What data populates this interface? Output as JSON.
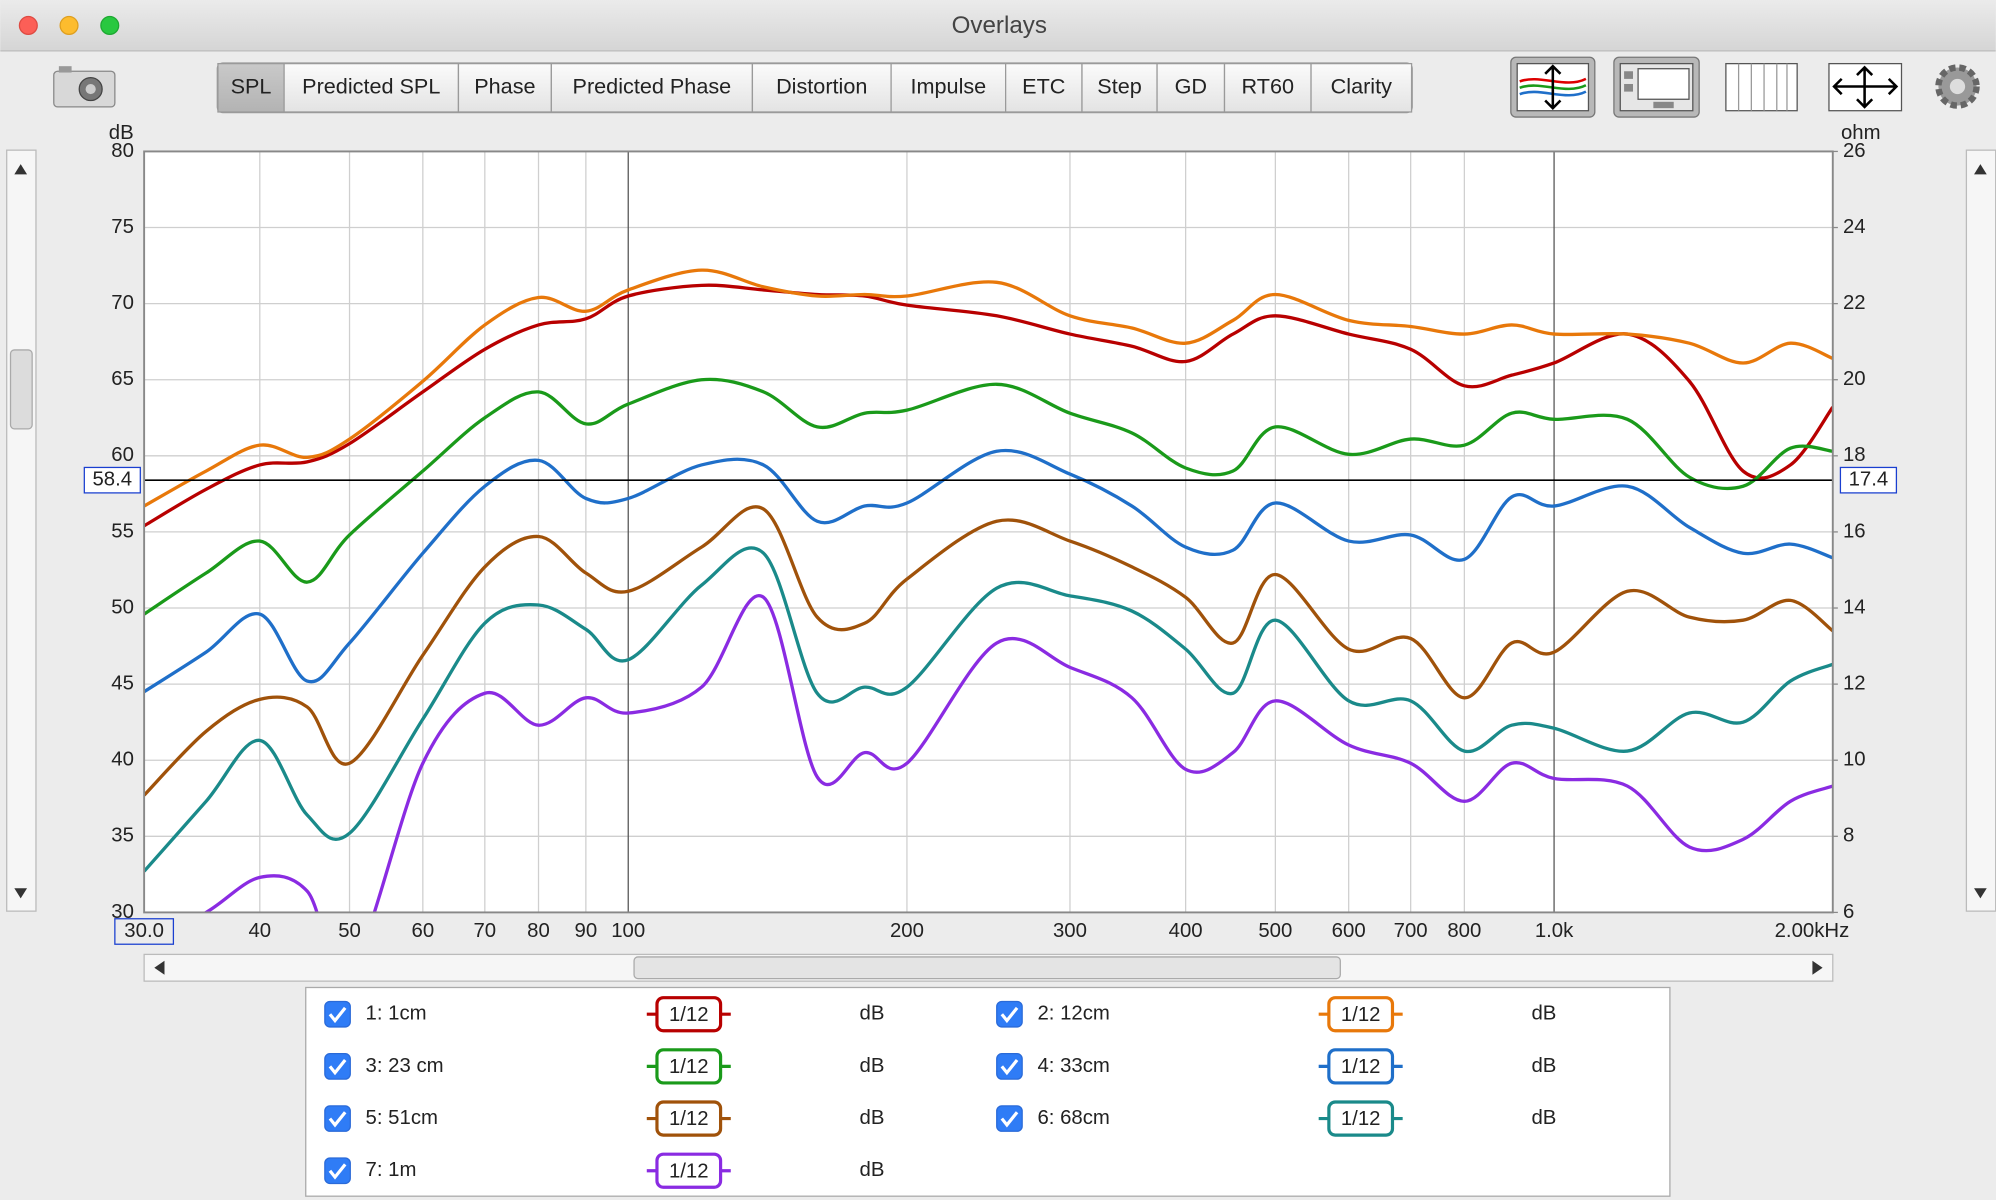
{
  "window": {
    "title": "Overlays"
  },
  "tabs": [
    {
      "label": "SPL",
      "selected": true
    },
    {
      "label": "Predicted SPL",
      "selected": false
    },
    {
      "label": "Phase",
      "selected": false
    },
    {
      "label": "Predicted Phase",
      "selected": false
    },
    {
      "label": "Distortion",
      "selected": false
    },
    {
      "label": "Impulse",
      "selected": false
    },
    {
      "label": "ETC",
      "selected": false
    },
    {
      "label": "Step",
      "selected": false
    },
    {
      "label": "GD",
      "selected": false
    },
    {
      "label": "RT60",
      "selected": false
    },
    {
      "label": "Clarity",
      "selected": false
    }
  ],
  "chart_data": {
    "type": "line",
    "xscale": "log",
    "grid": true,
    "ylabel": "dB",
    "y2label": "ohm",
    "x": [
      30,
      35,
      40,
      45,
      50,
      60,
      70,
      80,
      90,
      100,
      120,
      140,
      160,
      180,
      200,
      250,
      300,
      350,
      400,
      450,
      500,
      600,
      700,
      800,
      900,
      1000,
      1200,
      1400,
      1600,
      1800,
      2000
    ],
    "xlim": [
      30,
      2000
    ],
    "xticks": [
      {
        "value": 30,
        "label": "30.0"
      },
      40,
      50,
      60,
      70,
      80,
      90,
      100,
      200,
      300,
      400,
      500,
      600,
      700,
      800,
      {
        "value": 1000,
        "label": "1.0k"
      },
      {
        "value": 2000,
        "label": "2.00kHz"
      }
    ],
    "ylim": [
      30,
      80
    ],
    "yticks": [
      30,
      35,
      40,
      45,
      50,
      55,
      60,
      65,
      70,
      75,
      80
    ],
    "y2lim": [
      6,
      26
    ],
    "y2ticks": [
      6,
      8,
      10,
      12,
      14,
      16,
      18,
      20,
      22,
      24,
      26
    ],
    "cursor": {
      "value": 58.4,
      "y2_value": 17.4
    },
    "series": [
      {
        "name": "1: 1cm",
        "color": "#b80000",
        "smoothing": "1/12",
        "unit": "dB",
        "checked": true,
        "values": [
          55.4,
          57.8,
          59.4,
          59.6,
          60.8,
          64.2,
          67,
          68.6,
          69,
          70.5,
          71.2,
          70.9,
          70.6,
          70.5,
          69.9,
          69.2,
          68,
          67.2,
          66.2,
          68,
          69.2,
          68,
          67,
          64.6,
          65.3,
          66.1,
          68,
          64.9,
          59,
          59.4,
          63.2
        ]
      },
      {
        "name": "2: 12cm",
        "color": "#e8780a",
        "smoothing": "1/12",
        "unit": "dB",
        "checked": true,
        "values": [
          56.7,
          59,
          60.7,
          59.9,
          61.1,
          64.9,
          68.6,
          70.4,
          69.5,
          70.9,
          72.2,
          71.1,
          70.5,
          70.6,
          70.5,
          71.4,
          69.2,
          68.4,
          67.4,
          68.9,
          70.6,
          68.9,
          68.5,
          68,
          68.6,
          68,
          68,
          67.4,
          66.1,
          67.4,
          66.4
        ]
      },
      {
        "name": "3: 23 cm",
        "color": "#1a9a1a",
        "smoothing": "1/12",
        "unit": "dB",
        "checked": true,
        "values": [
          49.6,
          52.3,
          54.4,
          51.7,
          54.8,
          59,
          62.5,
          64.2,
          62.1,
          63.4,
          65,
          64.2,
          61.9,
          62.8,
          63,
          64.7,
          62.8,
          61.5,
          59.2,
          59,
          61.9,
          60.1,
          61.1,
          60.7,
          62.8,
          62.4,
          62.4,
          58.6,
          58,
          60.5,
          60.3
        ]
      },
      {
        "name": "4: 33cm",
        "color": "#1f6fc9",
        "smoothing": "1/12",
        "unit": "dB",
        "checked": true,
        "values": [
          44.5,
          47.1,
          49.6,
          45.2,
          47.7,
          53.6,
          58,
          59.7,
          57.2,
          57.2,
          59.4,
          59.4,
          55.7,
          56.7,
          56.9,
          60.3,
          58.8,
          56.7,
          54,
          53.8,
          56.9,
          54.4,
          54.8,
          53.2,
          57.3,
          56.7,
          58,
          55.3,
          53.6,
          54.2,
          53.3
        ]
      },
      {
        "name": "5: 51cm",
        "color": "#a0520a",
        "smoothing": "1/12",
        "unit": "dB",
        "checked": true,
        "values": [
          37.7,
          41.9,
          44,
          43.5,
          39.8,
          46.9,
          52.7,
          54.7,
          52.3,
          51.1,
          54,
          56.5,
          49.4,
          49,
          51.9,
          55.7,
          54.4,
          52.7,
          50.7,
          47.7,
          52.2,
          47.3,
          48,
          44.1,
          47.7,
          47.1,
          51.1,
          49.4,
          49.2,
          50.5,
          48.5
        ]
      },
      {
        "name": "6: 68cm",
        "color": "#1a8a8a",
        "smoothing": "1/12",
        "unit": "dB",
        "checked": true,
        "values": [
          32.7,
          37.3,
          41.3,
          36.4,
          35.2,
          42.7,
          49,
          50.2,
          48.6,
          46.6,
          51.5,
          53.6,
          44.4,
          44.8,
          44.8,
          51.3,
          50.8,
          49.8,
          47.3,
          44.4,
          49.2,
          43.9,
          43.9,
          40.6,
          42.3,
          42.1,
          40.6,
          43.1,
          42.5,
          45.2,
          46.3
        ]
      },
      {
        "name": "7: 1m",
        "color": "#8a2be2",
        "smoothing": "1/12",
        "unit": "dB",
        "checked": true,
        "values": [
          28,
          30,
          32.3,
          31.4,
          26,
          39.8,
          44.4,
          42.3,
          44.1,
          43.1,
          44.8,
          50.7,
          38.9,
          40.5,
          39.8,
          47.7,
          46.1,
          44.1,
          39.4,
          40.5,
          43.9,
          41,
          39.8,
          37.3,
          39.8,
          38.8,
          38.3,
          34.3,
          34.8,
          37.3,
          38.3
        ]
      }
    ]
  }
}
